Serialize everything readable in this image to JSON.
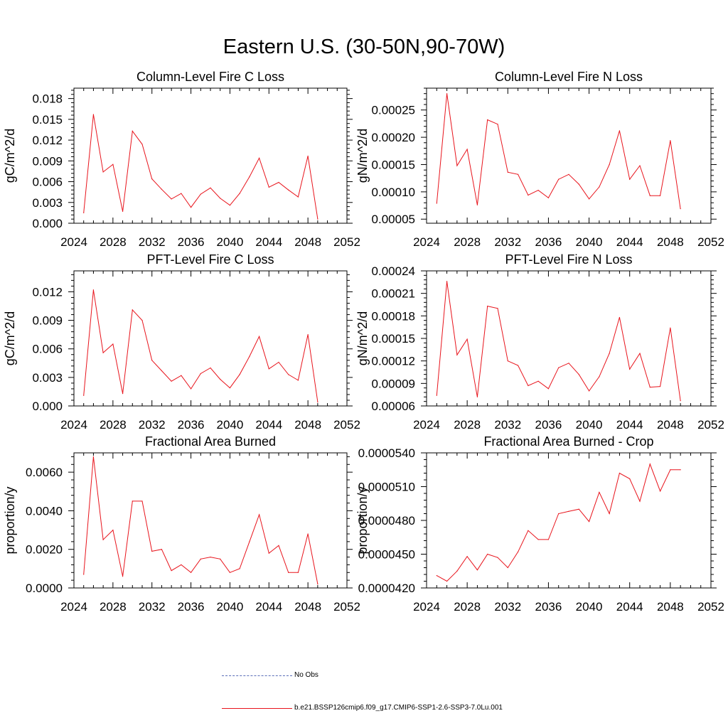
{
  "title": "Eastern U.S. (30-50N,90-70W)",
  "colors": {
    "series": "#e8141c",
    "obs": "#5a6eb8",
    "axis": "#000000"
  },
  "legend": {
    "items": [
      {
        "label": "No Obs",
        "style": "dashed",
        "color": "#5a6eb8"
      },
      {
        "label": "b.e21.BSSP126cmip6.f09_g17.CMIP6-SSP1-2.6-SSP3-7.0Lu.001",
        "style": "solid",
        "color": "#e8141c"
      }
    ]
  },
  "chart_data": [
    {
      "type": "line",
      "title": "Column-Level Fire C Loss",
      "ylabel": "gC/m^2/d",
      "xlim": [
        2024,
        2052
      ],
      "ylim": [
        0,
        0.0195
      ],
      "xticks": [
        2024,
        2028,
        2032,
        2036,
        2040,
        2044,
        2048,
        2052
      ],
      "yticks": [
        0,
        0.003,
        0.006,
        0.009,
        0.012,
        0.015,
        0.018
      ],
      "ytick_labels": [
        "0.000",
        "0.003",
        "0.006",
        "0.009",
        "0.012",
        "0.015",
        "0.018"
      ],
      "x": [
        2025,
        2026,
        2027,
        2028,
        2029,
        2030,
        2031,
        2032,
        2033,
        2034,
        2035,
        2036,
        2037,
        2038,
        2039,
        2040,
        2041,
        2042,
        2043,
        2044,
        2045,
        2046,
        2047,
        2048,
        2049
      ],
      "values": [
        0.0015,
        0.0157,
        0.0074,
        0.0085,
        0.0017,
        0.0133,
        0.0114,
        0.0064,
        0.0049,
        0.0035,
        0.0043,
        0.0023,
        0.0042,
        0.0051,
        0.0036,
        0.0026,
        0.0043,
        0.0067,
        0.0094,
        0.0052,
        0.0059,
        0.0048,
        0.0038,
        0.0097,
        0.0006
      ]
    },
    {
      "type": "line",
      "title": "Column-Level Fire N Loss",
      "ylabel": "gN/m^2/d",
      "xlim": [
        2024,
        2052
      ],
      "ylim": [
        4.25e-05,
        0.00029
      ],
      "xticks": [
        2024,
        2028,
        2032,
        2036,
        2040,
        2044,
        2048,
        2052
      ],
      "yticks": [
        5e-05,
        0.0001,
        0.00015,
        0.0002,
        0.00025
      ],
      "ytick_labels": [
        "0.00005",
        "0.00010",
        "0.00015",
        "0.00020",
        "0.00025"
      ],
      "x": [
        2025,
        2026,
        2027,
        2028,
        2029,
        2030,
        2031,
        2032,
        2033,
        2034,
        2035,
        2036,
        2037,
        2038,
        2039,
        2040,
        2041,
        2042,
        2043,
        2044,
        2045,
        2046,
        2047,
        2048,
        2049
      ],
      "values": [
        7.9e-05,
        0.00028,
        0.000148,
        0.000178,
        7.6e-05,
        0.000232,
        0.000224,
        0.000136,
        0.000132,
        9.4e-05,
        0.000103,
        8.9e-05,
        0.000123,
        0.000132,
        0.000114,
        8.7e-05,
        0.000109,
        0.00015,
        0.000212,
        0.000123,
        0.000148,
        9.3e-05,
        9.3e-05,
        0.000194,
        6.9e-05
      ]
    },
    {
      "type": "line",
      "title": "PFT-Level Fire C Loss",
      "ylabel": "gC/m^2/d",
      "xlim": [
        2024,
        2052
      ],
      "ylim": [
        0,
        0.0142
      ],
      "xticks": [
        2024,
        2028,
        2032,
        2036,
        2040,
        2044,
        2048,
        2052
      ],
      "yticks": [
        0,
        0.003,
        0.006,
        0.009,
        0.012
      ],
      "ytick_labels": [
        "0.000",
        "0.003",
        "0.006",
        "0.009",
        "0.012"
      ],
      "x": [
        2025,
        2026,
        2027,
        2028,
        2029,
        2030,
        2031,
        2032,
        2033,
        2034,
        2035,
        2036,
        2037,
        2038,
        2039,
        2040,
        2041,
        2042,
        2043,
        2044,
        2045,
        2046,
        2047,
        2048,
        2049
      ],
      "values": [
        0.0011,
        0.0122,
        0.0056,
        0.0065,
        0.0013,
        0.0101,
        0.009,
        0.0048,
        0.0037,
        0.0026,
        0.0032,
        0.0018,
        0.0034,
        0.004,
        0.0028,
        0.0019,
        0.0033,
        0.0052,
        0.0073,
        0.0039,
        0.0046,
        0.0033,
        0.0027,
        0.0075,
        0.0004
      ]
    },
    {
      "type": "line",
      "title": "PFT-Level Fire N Loss",
      "ylabel": "gN/m^2/d",
      "xlim": [
        2024,
        2052
      ],
      "ylim": [
        6e-05,
        0.00024
      ],
      "xticks": [
        2024,
        2028,
        2032,
        2036,
        2040,
        2044,
        2048,
        2052
      ],
      "yticks": [
        6e-05,
        9e-05,
        0.00012,
        0.00015,
        0.00018,
        0.00021,
        0.00024
      ],
      "ytick_labels": [
        "0.00006",
        "0.00009",
        "0.00012",
        "0.00015",
        "0.00018",
        "0.00021",
        "0.00024"
      ],
      "x": [
        2025,
        2026,
        2027,
        2028,
        2029,
        2030,
        2031,
        2032,
        2033,
        2034,
        2035,
        2036,
        2037,
        2038,
        2039,
        2040,
        2041,
        2042,
        2043,
        2044,
        2045,
        2046,
        2047,
        2048,
        2049
      ],
      "values": [
        7.4e-05,
        0.000226,
        0.000128,
        0.000149,
        7.2e-05,
        0.000193,
        0.00019,
        0.00012,
        0.000114,
        8.7e-05,
        9.3e-05,
        8.3e-05,
        0.000111,
        0.000117,
        0.000102,
        8e-05,
        9.9e-05,
        0.00013,
        0.000178,
        0.000109,
        0.00013,
        8.5e-05,
        8.6e-05,
        0.000164,
        6.7e-05
      ]
    },
    {
      "type": "line",
      "title": "Fractional Area Burned",
      "ylabel": "proportion/y",
      "xlim": [
        2024,
        2052
      ],
      "ylim": [
        0,
        0.007
      ],
      "xticks": [
        2024,
        2028,
        2032,
        2036,
        2040,
        2044,
        2048,
        2052
      ],
      "yticks": [
        0,
        0.002,
        0.004,
        0.006
      ],
      "ytick_labels": [
        "0.0000",
        "0.0020",
        "0.0040",
        "0.0060"
      ],
      "x": [
        2025,
        2026,
        2027,
        2028,
        2029,
        2030,
        2031,
        2032,
        2033,
        2034,
        2035,
        2036,
        2037,
        2038,
        2039,
        2040,
        2041,
        2042,
        2043,
        2044,
        2045,
        2046,
        2047,
        2048,
        2049
      ],
      "values": [
        0.0007,
        0.0068,
        0.0025,
        0.003,
        0.0006,
        0.0045,
        0.0045,
        0.0019,
        0.002,
        0.0009,
        0.0012,
        0.0008,
        0.0015,
        0.0016,
        0.0015,
        0.0008,
        0.001,
        0.0024,
        0.0038,
        0.0018,
        0.0022,
        0.0008,
        0.0008,
        0.0028,
        0.0002
      ]
    },
    {
      "type": "line",
      "title": "Fractional Area Burned - Crop",
      "ylabel": "proportion/y",
      "xlim": [
        2024,
        2052
      ],
      "ylim": [
        4.2e-05,
        5.4e-05
      ],
      "xticks": [
        2024,
        2028,
        2032,
        2036,
        2040,
        2044,
        2048,
        2052
      ],
      "yticks": [
        4.2e-05,
        4.5e-05,
        4.8e-05,
        5.1e-05,
        5.4e-05
      ],
      "ytick_labels": [
        "0.0000420",
        "0.0000450",
        "0.0000480",
        "0.0000510",
        "0.0000540"
      ],
      "x": [
        2025,
        2026,
        2027,
        2028,
        2029,
        2030,
        2031,
        2032,
        2033,
        2034,
        2035,
        2036,
        2037,
        2038,
        2039,
        2040,
        2041,
        2042,
        2043,
        2044,
        2045,
        2046,
        2047,
        2048,
        2049
      ],
      "values": [
        4.31e-05,
        4.26e-05,
        4.35e-05,
        4.48e-05,
        4.36e-05,
        4.5e-05,
        4.47e-05,
        4.38e-05,
        4.52e-05,
        4.71e-05,
        4.63e-05,
        4.63e-05,
        4.86e-05,
        4.88e-05,
        4.9e-05,
        4.79e-05,
        5.05e-05,
        4.86e-05,
        5.22e-05,
        5.17e-05,
        4.97e-05,
        5.3e-05,
        5.06e-05,
        5.25e-05,
        5.25e-05
      ]
    }
  ]
}
